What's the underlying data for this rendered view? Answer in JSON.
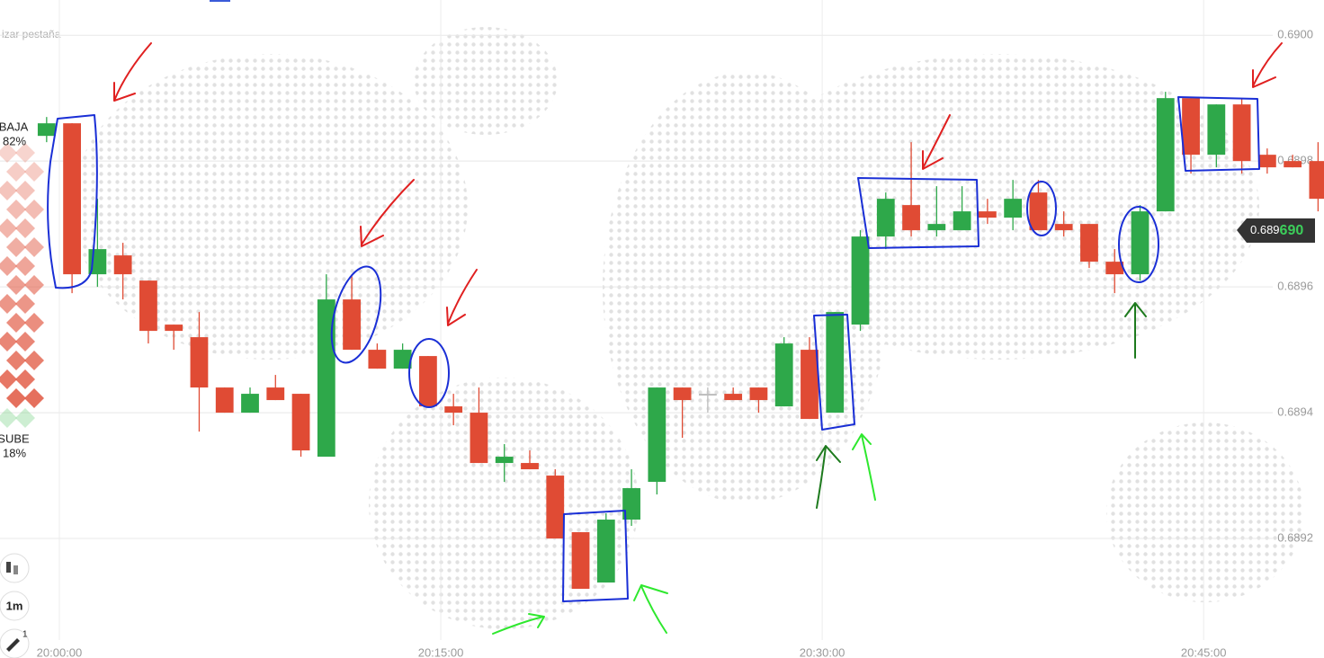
{
  "sidebar": {
    "down_label": "BAJA",
    "down_pct": "82%",
    "up_label": "SUBE",
    "up_pct": "18%"
  },
  "tab_hint": "izar pestaña",
  "timeframe": "1m",
  "tool_badge": "1",
  "price_label": {
    "prefix": "0.689",
    "emphasis": "690"
  },
  "chart_data": {
    "type": "candlestick",
    "up_color": "#2ea84a",
    "down_color": "#e04b34",
    "flat_color": "#bdbdbd",
    "grid": true,
    "x": [
      "19:59:00",
      "20:00:00",
      "20:01:00",
      "20:02:00",
      "20:03:00",
      "20:04:00",
      "20:05:00",
      "20:06:00",
      "20:07:00",
      "20:08:00",
      "20:09:00",
      "20:10:00",
      "20:11:00",
      "20:12:00",
      "20:13:00",
      "20:14:00",
      "20:15:00",
      "20:16:00",
      "20:17:00",
      "20:18:00",
      "20:19:00",
      "20:20:00",
      "20:21:00",
      "20:22:00",
      "20:23:00",
      "20:24:00",
      "20:25:00",
      "20:26:00",
      "20:27:00",
      "20:28:00",
      "20:29:00",
      "20:30:00",
      "20:31:00",
      "20:32:00",
      "20:33:00",
      "20:34:00",
      "20:35:00",
      "20:36:00",
      "20:37:00",
      "20:38:00",
      "20:39:00",
      "20:40:00",
      "20:41:00",
      "20:42:00",
      "20:43:00",
      "20:44:00",
      "20:45:00",
      "20:46:00",
      "20:47:00",
      "20:48:00",
      "20:49:00"
    ],
    "open": [
      0.68984,
      0.68986,
      0.68962,
      0.68965,
      0.68961,
      0.68954,
      0.68952,
      0.68944,
      0.6894,
      0.68944,
      0.68943,
      0.68933,
      0.68958,
      0.6895,
      0.68947,
      0.68949,
      0.68941,
      0.6894,
      0.68932,
      0.68932,
      0.6893,
      0.68921,
      0.68913,
      0.68923,
      0.68929,
      0.68944,
      0.68943,
      0.68943,
      0.68944,
      0.68941,
      0.6895,
      0.6894,
      0.68954,
      0.68968,
      0.68973,
      0.68969,
      0.68969,
      0.68972,
      0.68971,
      0.68975,
      0.6897,
      0.6897,
      0.68964,
      0.68962,
      0.68972,
      0.6899,
      0.68981,
      0.68989,
      0.68981,
      0.6898,
      0.6898
    ],
    "high": [
      0.68987,
      0.68986,
      0.68974,
      0.68967,
      0.68961,
      0.68954,
      0.68956,
      0.68944,
      0.68944,
      0.68946,
      0.68943,
      0.68962,
      0.68962,
      0.68951,
      0.68951,
      0.68949,
      0.68943,
      0.68944,
      0.68935,
      0.68934,
      0.68931,
      0.68921,
      0.68924,
      0.68931,
      0.68944,
      0.68944,
      0.68944,
      0.68944,
      0.68944,
      0.68952,
      0.68952,
      0.68956,
      0.68969,
      0.68975,
      0.68983,
      0.68976,
      0.68976,
      0.68974,
      0.68977,
      0.68977,
      0.68972,
      0.6897,
      0.68966,
      0.68973,
      0.68991,
      0.6899,
      0.68989,
      0.6899,
      0.68982,
      0.68981,
      0.68983
    ],
    "low": [
      0.68983,
      0.68959,
      0.6896,
      0.68958,
      0.68951,
      0.6895,
      0.68937,
      0.6894,
      0.6894,
      0.68942,
      0.68933,
      0.68933,
      0.6895,
      0.68947,
      0.68947,
      0.68941,
      0.68938,
      0.68932,
      0.68929,
      0.68931,
      0.6892,
      0.68912,
      0.68913,
      0.68922,
      0.68927,
      0.68936,
      0.6894,
      0.68942,
      0.6894,
      0.68941,
      0.68939,
      0.6894,
      0.68953,
      0.68966,
      0.68968,
      0.68968,
      0.68969,
      0.6897,
      0.68969,
      0.68969,
      0.68968,
      0.68963,
      0.68959,
      0.68961,
      0.68972,
      0.68978,
      0.68979,
      0.68978,
      0.68978,
      0.68979,
      0.68972
    ],
    "close": [
      0.68986,
      0.68962,
      0.68966,
      0.68962,
      0.68953,
      0.68953,
      0.68944,
      0.6894,
      0.68943,
      0.68942,
      0.68934,
      0.68958,
      0.6895,
      0.68947,
      0.6895,
      0.68941,
      0.6894,
      0.68932,
      0.68933,
      0.68931,
      0.6892,
      0.68912,
      0.68923,
      0.68928,
      0.68944,
      0.68942,
      0.68943,
      0.68942,
      0.68942,
      0.68951,
      0.68939,
      0.68956,
      0.68968,
      0.68974,
      0.68969,
      0.6897,
      0.68972,
      0.68971,
      0.68974,
      0.68969,
      0.68969,
      0.68964,
      0.68962,
      0.68972,
      0.6899,
      0.68981,
      0.68989,
      0.6898,
      0.68979,
      0.68979,
      0.68974
    ],
    "xlim": [
      "19:57:40",
      "20:49:44"
    ],
    "xticks": [
      "20:00:00",
      "20:15:00",
      "20:30:00",
      "20:45:00"
    ],
    "ylim": [
      0.68901,
      0.690056
    ],
    "yticks": [
      {
        "value": 0.69,
        "label": "0.6900"
      },
      0.6898,
      0.6896,
      0.6894,
      0.6892
    ]
  }
}
